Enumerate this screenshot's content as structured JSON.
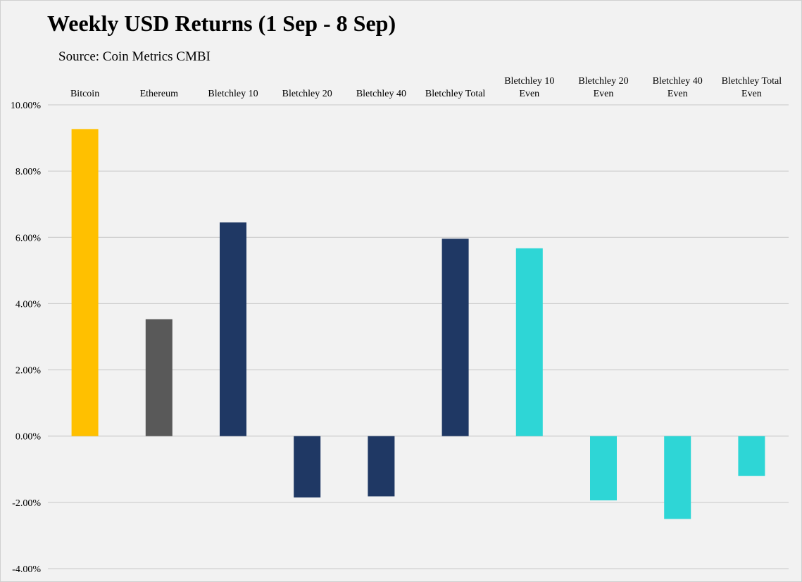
{
  "title": "Weekly USD Returns (1 Sep - 8 Sep)",
  "subtitle": "Source: Coin Metrics CMBI",
  "chart_data": {
    "type": "bar",
    "title": "Weekly USD Returns (1 Sep - 8 Sep)",
    "subtitle": "Source: Coin Metrics CMBI",
    "xlabel": "",
    "ylabel": "",
    "ylim": [
      -4,
      10
    ],
    "y_ticks": [
      {
        "value": 10,
        "label": "10.00%"
      },
      {
        "value": 8,
        "label": "8.00%"
      },
      {
        "value": 6,
        "label": "6.00%"
      },
      {
        "value": 4,
        "label": "4.00%"
      },
      {
        "value": 2,
        "label": "2.00%"
      },
      {
        "value": 0,
        "label": "0.00%"
      },
      {
        "value": -2,
        "label": "-2.00%"
      },
      {
        "value": -4,
        "label": "-4.00%"
      }
    ],
    "grid": true,
    "category_axis_position": "top",
    "categories": [
      {
        "lines": [
          "Bitcoin"
        ],
        "value": 9.27,
        "color": "#ffc000"
      },
      {
        "lines": [
          "Ethereum"
        ],
        "value": 3.53,
        "color": "#595959"
      },
      {
        "lines": [
          "Bletchley 10"
        ],
        "value": 6.45,
        "color": "#1f3864"
      },
      {
        "lines": [
          "Bletchley 20"
        ],
        "value": -1.85,
        "color": "#1f3864"
      },
      {
        "lines": [
          "Bletchley 40"
        ],
        "value": -1.82,
        "color": "#1f3864"
      },
      {
        "lines": [
          "Bletchley Total"
        ],
        "value": 5.96,
        "color": "#1f3864"
      },
      {
        "lines": [
          "Bletchley 10",
          "Even"
        ],
        "value": 5.67,
        "color": "#2ed6d6"
      },
      {
        "lines": [
          "Bletchley 20",
          "Even"
        ],
        "value": -1.94,
        "color": "#2ed6d6"
      },
      {
        "lines": [
          "Bletchley 40",
          "Even"
        ],
        "value": -2.5,
        "color": "#2ed6d6"
      },
      {
        "lines": [
          "Bletchley Total",
          "Even"
        ],
        "value": -1.2,
        "color": "#2ed6d6"
      }
    ]
  }
}
